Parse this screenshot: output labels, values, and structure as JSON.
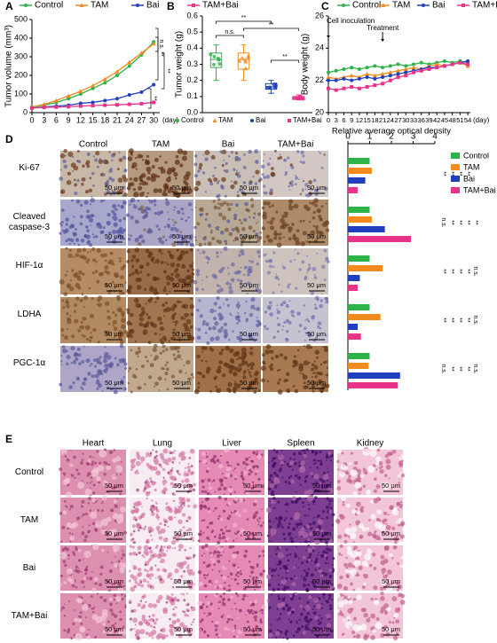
{
  "panel_labels": [
    "A",
    "B",
    "C",
    "D",
    "E"
  ],
  "chart_data": [
    {
      "type": "line",
      "ylabel": "Tumor volume (mm³)",
      "xlabel": "(day)",
      "x": [
        0,
        3,
        6,
        9,
        12,
        15,
        18,
        21,
        24,
        27,
        30
      ],
      "xlim": [
        0,
        31.5
      ],
      "xticks": [
        0,
        3,
        6,
        9,
        12,
        15,
        18,
        21,
        24,
        27,
        30
      ],
      "ylim": [
        0,
        500
      ],
      "yticks": [
        0,
        100,
        200,
        300,
        400,
        500
      ],
      "series": [
        {
          "name": "Control",
          "color": "#2db34a",
          "values": [
            30,
            40,
            55,
            75,
            100,
            130,
            160,
            200,
            250,
            310,
            380
          ]
        },
        {
          "name": "TAM",
          "color": "#f28a1e",
          "values": [
            30,
            45,
            65,
            90,
            115,
            145,
            180,
            220,
            270,
            320,
            370
          ]
        },
        {
          "name": "Bai",
          "color": "#1f3fbf",
          "values": [
            25,
            30,
            35,
            40,
            50,
            55,
            65,
            75,
            95,
            110,
            150
          ]
        },
        {
          "name": "TAM+Bai",
          "color": "#e8338a",
          "values": [
            25,
            28,
            30,
            32,
            35,
            38,
            40,
            42,
            45,
            48,
            55
          ]
        }
      ],
      "annotations": [
        "n.s.",
        "**",
        "**",
        "**"
      ]
    },
    {
      "type": "box",
      "ylabel": "Tumor weight (g)",
      "categories": [
        "Control",
        "TAM",
        "Bai",
        "TAM+Bai"
      ],
      "ylim": [
        0,
        0.6
      ],
      "yticks": [
        {
          "value": 0,
          "label": "0.0"
        },
        0.1,
        0.2,
        0.3,
        0.4,
        0.5,
        0.6
      ],
      "series": [
        {
          "name": "Control",
          "color": "#2db34a",
          "min": 0.2,
          "q1": 0.28,
          "median": 0.33,
          "q3": 0.37,
          "max": 0.42
        },
        {
          "name": "TAM",
          "color": "#f28a1e",
          "min": 0.2,
          "q1": 0.27,
          "median": 0.33,
          "q3": 0.37,
          "max": 0.42
        },
        {
          "name": "Bai",
          "color": "#1f3fbf",
          "min": 0.12,
          "q1": 0.145,
          "median": 0.16,
          "q3": 0.18,
          "max": 0.2
        },
        {
          "name": "TAM+Bai",
          "color": "#e8338a",
          "min": 0.08,
          "q1": 0.085,
          "median": 0.09,
          "q3": 0.1,
          "max": 0.11
        }
      ],
      "annotations": [
        "n.s.",
        "**",
        "**",
        "**"
      ]
    },
    {
      "type": "line",
      "ylabel": "Body weight (g)",
      "xlabel": "(day)",
      "x": [
        0,
        3,
        6,
        9,
        12,
        15,
        18,
        21,
        24,
        27,
        30,
        33,
        36,
        39,
        42,
        45,
        48,
        51,
        54
      ],
      "xlim": [
        0,
        55
      ],
      "xticks": [
        0,
        3,
        6,
        9,
        12,
        15,
        18,
        21,
        24,
        27,
        30,
        33,
        36,
        39,
        42,
        45,
        48,
        51,
        54
      ],
      "ylim": [
        20,
        26
      ],
      "yticks": [
        20,
        22,
        24,
        26
      ],
      "series": [
        {
          "name": "Control",
          "color": "#2db34a",
          "values": [
            22.5,
            22.6,
            22.7,
            22.8,
            22.7,
            22.8,
            22.9,
            22.8,
            22.9,
            23.0,
            22.9,
            23.0,
            23.1,
            23.0,
            23.1,
            23.2,
            23.1,
            23.2,
            23.1
          ]
        },
        {
          "name": "TAM",
          "color": "#f28a1e",
          "values": [
            22.2,
            22.1,
            22.2,
            22.3,
            22.2,
            22.4,
            22.3,
            22.4,
            22.5,
            22.6,
            22.7,
            22.8,
            22.7,
            22.9,
            23.0,
            22.9,
            23.0,
            23.1,
            22.9
          ]
        },
        {
          "name": "Bai",
          "color": "#1f3fbf",
          "values": [
            22.0,
            22.0,
            22.1,
            22.0,
            22.1,
            22.2,
            22.1,
            22.2,
            22.3,
            22.4,
            22.5,
            22.6,
            22.7,
            22.8,
            22.8,
            22.9,
            23.0,
            23.1,
            23.2
          ]
        },
        {
          "name": "TAM+Bai",
          "color": "#e8338a",
          "values": [
            21.5,
            21.4,
            21.5,
            21.6,
            21.5,
            21.6,
            21.7,
            21.8,
            22.0,
            22.2,
            22.3,
            22.5,
            22.6,
            22.7,
            22.8,
            22.9,
            23.0,
            23.1,
            23.0
          ]
        }
      ],
      "annotations": [
        {
          "text": "Cell inoculation",
          "x": 0
        },
        {
          "text": "Treatment",
          "x": 21
        }
      ]
    },
    {
      "type": "hbar",
      "xlabel": "Relative average optical density",
      "categories": [
        "Ki-67",
        "Cleaved caspase-3",
        "HIF-1α",
        "LDHA",
        "PGC-1α"
      ],
      "xlim": [
        0,
        4
      ],
      "xticks": [
        0,
        1,
        2,
        3,
        4
      ],
      "series": [
        {
          "name": "Control",
          "color": "#2db34a",
          "values": [
            1,
            1,
            1,
            1,
            1
          ]
        },
        {
          "name": "TAM",
          "color": "#f28a1e",
          "values": [
            1.1,
            1.1,
            1.6,
            1.5,
            0.95
          ]
        },
        {
          "name": "Bai",
          "color": "#1f3fbf",
          "values": [
            0.8,
            1.7,
            0.55,
            0.45,
            2.4
          ]
        },
        {
          "name": "TAM+Bai",
          "color": "#e8338a",
          "values": [
            0.45,
            2.9,
            0.45,
            0.6,
            2.3
          ]
        }
      ],
      "annotations": [
        [
          "**",
          "**",
          "**",
          "**"
        ],
        [
          "n.s.",
          "**",
          "**",
          "**",
          "**"
        ],
        [
          "**",
          "**",
          "**",
          "**",
          "n.s."
        ],
        [
          "**",
          "**",
          "**",
          "**",
          "n.s."
        ],
        [
          "n.s.",
          "**",
          "**",
          "**",
          "n.s."
        ]
      ]
    }
  ],
  "ihc": {
    "columns": [
      "Control",
      "TAM",
      "Bai",
      "TAM+Bai"
    ],
    "scale_bar": "50 μm"
  },
  "histology": {
    "columns": [
      "Heart",
      "Lung",
      "Liver",
      "Spleen",
      "Kidney"
    ],
    "rows": [
      "Control",
      "TAM",
      "Bai",
      "TAM+Bai"
    ],
    "scale_bar": "50 μm"
  }
}
